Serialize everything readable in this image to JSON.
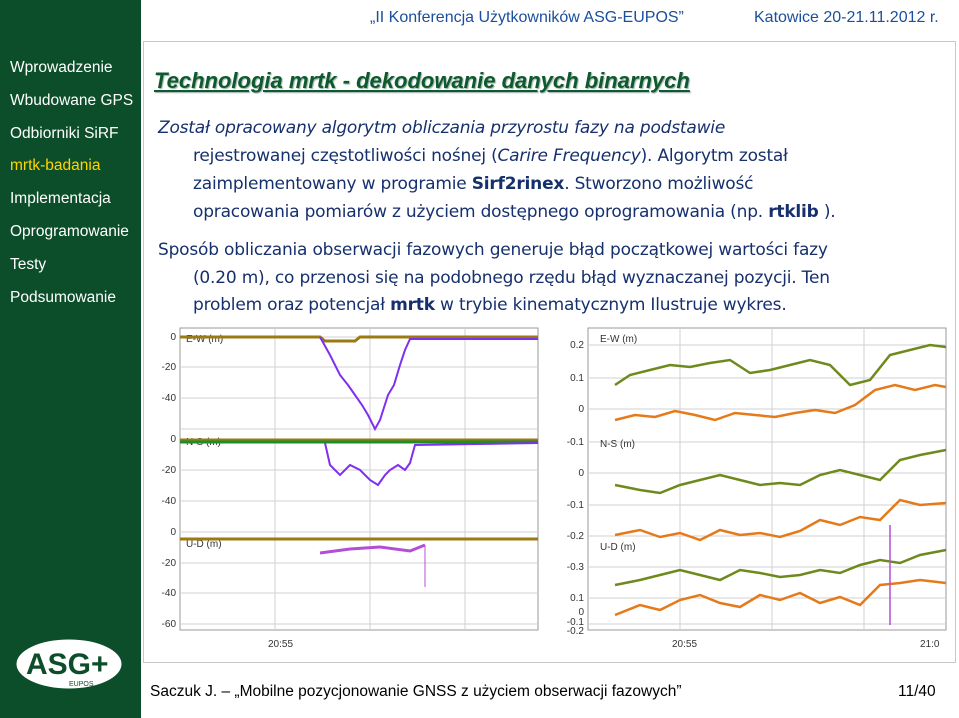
{
  "header": {
    "conference": "„II Konferencja Użytkowników ASG-EUPOS”",
    "date": "Katowice 20-21.11.2012 r."
  },
  "sidebar": {
    "items": [
      {
        "label": "Wprowadzenie",
        "active": false
      },
      {
        "label": "Wbudowane GPS",
        "active": false
      },
      {
        "label": "Odbiorniki SiRF",
        "active": false
      },
      {
        "label": "mrtk-badania",
        "active": true
      },
      {
        "label": "Implementacja",
        "active": false
      },
      {
        "label": "Oprogramowanie",
        "active": false
      },
      {
        "label": "Testy",
        "active": false
      },
      {
        "label": "Podsumowanie",
        "active": false
      }
    ]
  },
  "slide": {
    "title": "Technologia mrtk  -  dekodowanie danych binarnych",
    "p1": {
      "l1": "Został opracowany algorytm  obliczania przyrostu fazy na podstawie",
      "l2_a": "rejestrowanej częstotliwości nośnej (",
      "l2_b": "Carire Frequency",
      "l2_c": "). Algorytm został",
      "l3_a": "zaimplementowany w programie ",
      "l3_b": "Sirf2rinex",
      "l3_c": ". Stworzono możliwość",
      "l4_a": "opracowania pomiarów z użyciem dostępnego oprogramowania (np. ",
      "l4_b": "rtklib",
      "l4_c": " )."
    },
    "p2": {
      "l1": "Sposób obliczania obserwacji fazowych generuje błąd początkowej  wartości fazy",
      "l2": "(0.20 m), co przenosi się na podobnego rzędu błąd wyznaczanej pozycji.  Ten",
      "l3_a": "problem oraz potencjał ",
      "l3_b": "mrtk",
      "l3_c": " w trybie kinematycznym Ilustruje wykres."
    }
  },
  "chart_data": [
    {
      "type": "line",
      "panel": "left",
      "subplots": [
        {
          "label": "E-W (m)",
          "yticks": [
            "0",
            "-20",
            "-40"
          ]
        },
        {
          "label": "N-S (m)",
          "yticks": [
            "0",
            "-20",
            "-40"
          ]
        },
        {
          "label": "U-D (m)",
          "yticks": [
            "0",
            "-20",
            "-40",
            "-60"
          ]
        }
      ],
      "xtick": "20:55",
      "colors": {
        "line1": "#9b7a12",
        "line2": "#7f2ff0",
        "green": "#1d8f2a"
      }
    },
    {
      "type": "line",
      "panel": "right",
      "subplots": [
        {
          "label": "E-W (m)",
          "yticks": [
            "0.2",
            "0.1",
            "0",
            "-0.1"
          ]
        },
        {
          "label": "N-S (m)",
          "yticks": [
            "0",
            "-0.1",
            "-0.2",
            "-0.3"
          ]
        },
        {
          "label": "U-D (m)",
          "yticks": [
            "0.1",
            "0",
            "-0.1",
            "-0.2"
          ]
        }
      ],
      "xtick_left": "20:55",
      "xtick_right": "21:0",
      "colors": {
        "orange": "#e57a1a",
        "olive": "#6e8a1c",
        "purple": "#b34fd6"
      }
    }
  ],
  "footer": {
    "text": "Saczuk J. – „Mobilne pozycjonowanie GNSS z użyciem obserwacji fazowych”",
    "page": "11/40"
  },
  "logo": {
    "text": "ASG+",
    "sub": "EUPOS"
  },
  "colors": {
    "sidebar": "#0d4e2a",
    "active_nav": "#ffd400",
    "title": "#0d5a2c",
    "body": "#16306e"
  }
}
